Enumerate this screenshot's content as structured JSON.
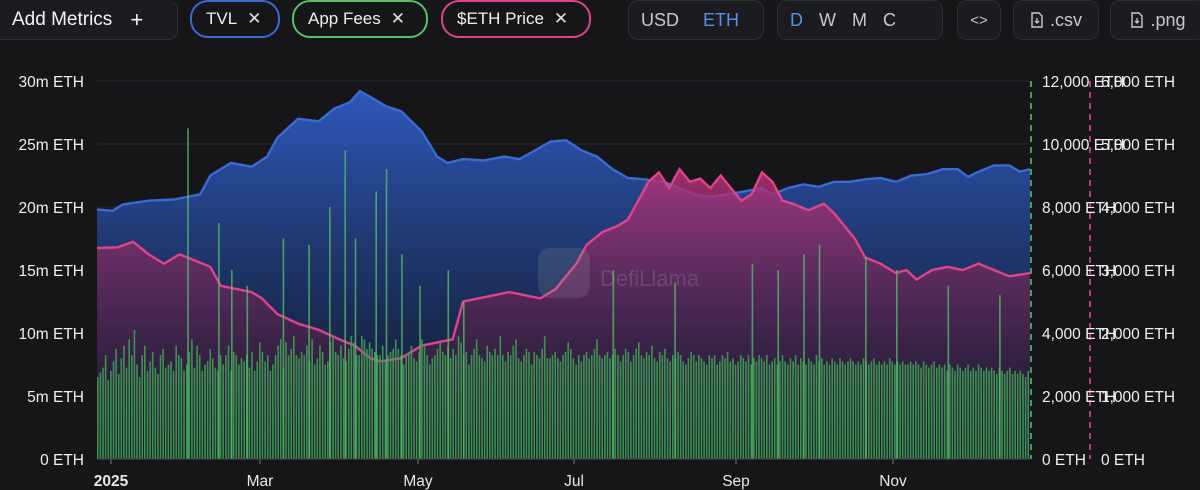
{
  "toolbar": {
    "add_metrics": "Add Metrics",
    "add_icon": "+",
    "metrics": [
      {
        "label": "TVL",
        "color": "#3a6ad4"
      },
      {
        "label": "App Fees",
        "color": "#55c06a"
      },
      {
        "label": "$ETH Price",
        "color": "#e0428c"
      }
    ],
    "currency": [
      "USD",
      "ETH"
    ],
    "currency_active": "ETH",
    "periods": [
      "D",
      "W",
      "M",
      "C"
    ],
    "period_active": "D",
    "embed_icon": "<>",
    "csv_label": ".csv",
    "png_label": ".png"
  },
  "watermark": "DefiLlama",
  "chart_data": {
    "type": "area",
    "x_labels": [
      "2025",
      "Mar",
      "May",
      "Jul",
      "Sep",
      "Nov"
    ],
    "y_left": {
      "ticks": [
        "0 ETH",
        "5m ETH",
        "10m ETH",
        "15m ETH",
        "20m ETH",
        "25m ETH",
        "30m ETH"
      ],
      "range": [
        0,
        30000000
      ]
    },
    "y_right_1": {
      "ticks": [
        "0 ETH",
        "2,000 ETH",
        "4,000 ETH",
        "6,000 ETH",
        "8,000 ETH",
        "10,000 ETH",
        "12,000 ETH"
      ],
      "range": [
        0,
        12000
      ]
    },
    "y_right_2": {
      "ticks": [
        "0 ETH",
        "1,000 ETH",
        "2,000 ETH",
        "3,000 ETH",
        "4,000 ETH",
        "5,000 ETH",
        "6,000 ETH"
      ],
      "range": [
        0,
        6000
      ]
    },
    "series": [
      {
        "name": "TVL",
        "axis": "left",
        "color": "#3a6ad4",
        "points": [
          [
            0,
            19.8
          ],
          [
            6,
            19.7
          ],
          [
            10,
            20.2
          ],
          [
            20,
            20.5
          ],
          [
            30,
            20.6
          ],
          [
            40,
            21.0
          ],
          [
            44,
            22.5
          ],
          [
            52,
            23.5
          ],
          [
            60,
            23.2
          ],
          [
            66,
            24.0
          ],
          [
            70,
            25.5
          ],
          [
            78,
            27.0
          ],
          [
            86,
            26.8
          ],
          [
            92,
            27.8
          ],
          [
            98,
            28.3
          ],
          [
            102,
            29.2
          ],
          [
            108,
            28.5
          ],
          [
            112,
            28.0
          ],
          [
            118,
            27.6
          ],
          [
            126,
            26.0
          ],
          [
            132,
            24.0
          ],
          [
            136,
            23.5
          ],
          [
            142,
            23.8
          ],
          [
            150,
            23.7
          ],
          [
            158,
            24.0
          ],
          [
            164,
            23.8
          ],
          [
            170,
            24.5
          ],
          [
            176,
            25.2
          ],
          [
            182,
            25.3
          ],
          [
            188,
            24.5
          ],
          [
            194,
            24.0
          ],
          [
            200,
            23.0
          ],
          [
            206,
            22.3
          ],
          [
            212,
            22.2
          ],
          [
            220,
            22.0
          ],
          [
            226,
            21.5
          ],
          [
            232,
            21.0
          ],
          [
            238,
            20.8
          ],
          [
            244,
            21.0
          ],
          [
            250,
            21.2
          ],
          [
            258,
            21.5
          ],
          [
            262,
            21.0
          ],
          [
            268,
            21.5
          ],
          [
            274,
            21.8
          ],
          [
            280,
            21.6
          ],
          [
            286,
            22.0
          ],
          [
            292,
            22.0
          ],
          [
            298,
            22.2
          ],
          [
            304,
            22.3
          ],
          [
            310,
            22.0
          ],
          [
            316,
            22.5
          ],
          [
            322,
            22.6
          ],
          [
            328,
            23.0
          ],
          [
            334,
            23.0
          ],
          [
            338,
            22.4
          ],
          [
            342,
            22.8
          ],
          [
            348,
            23.3
          ],
          [
            354,
            23.3
          ],
          [
            358,
            22.8
          ],
          [
            362,
            23.0
          ]
        ]
      },
      {
        "name": "$ETH Price",
        "axis": "right_2",
        "color": "#e0428c",
        "points": [
          [
            0,
            3350
          ],
          [
            8,
            3360
          ],
          [
            14,
            3450
          ],
          [
            20,
            3250
          ],
          [
            26,
            3100
          ],
          [
            32,
            3250
          ],
          [
            38,
            3150
          ],
          [
            44,
            3050
          ],
          [
            48,
            2750
          ],
          [
            54,
            2700
          ],
          [
            60,
            2650
          ],
          [
            64,
            2550
          ],
          [
            70,
            2300
          ],
          [
            78,
            2150
          ],
          [
            86,
            2050
          ],
          [
            94,
            1900
          ],
          [
            100,
            1800
          ],
          [
            106,
            1600
          ],
          [
            110,
            1550
          ],
          [
            118,
            1600
          ],
          [
            126,
            1800
          ],
          [
            132,
            1850
          ],
          [
            138,
            1900
          ],
          [
            142,
            2500
          ],
          [
            148,
            2550
          ],
          [
            154,
            2600
          ],
          [
            160,
            2650
          ],
          [
            166,
            2600
          ],
          [
            172,
            2550
          ],
          [
            178,
            2700
          ],
          [
            182,
            2900
          ],
          [
            186,
            3100
          ],
          [
            190,
            3400
          ],
          [
            196,
            3600
          ],
          [
            202,
            3700
          ],
          [
            206,
            3800
          ],
          [
            210,
            4100
          ],
          [
            214,
            4400
          ],
          [
            218,
            4550
          ],
          [
            222,
            4300
          ],
          [
            226,
            4600
          ],
          [
            230,
            4400
          ],
          [
            234,
            4450
          ],
          [
            238,
            4300
          ],
          [
            242,
            4500
          ],
          [
            246,
            4300
          ],
          [
            250,
            4100
          ],
          [
            254,
            4200
          ],
          [
            258,
            4550
          ],
          [
            262,
            4400
          ],
          [
            266,
            4100
          ],
          [
            270,
            4050
          ],
          [
            276,
            3950
          ],
          [
            282,
            4050
          ],
          [
            286,
            3900
          ],
          [
            290,
            3700
          ],
          [
            294,
            3500
          ],
          [
            298,
            3200
          ],
          [
            304,
            3100
          ],
          [
            310,
            2950
          ],
          [
            314,
            3000
          ],
          [
            318,
            2850
          ],
          [
            324,
            3000
          ],
          [
            330,
            3050
          ],
          [
            336,
            3000
          ],
          [
            342,
            3100
          ],
          [
            348,
            3000
          ],
          [
            354,
            2900
          ],
          [
            362,
            2950
          ]
        ]
      },
      {
        "name": "App Fees",
        "axis": "right_1",
        "color": "#55c06a",
        "type": "bar",
        "bars": [
          2600,
          2750,
          2900,
          3300,
          2500,
          2800,
          3100,
          3500,
          2700,
          3200,
          3600,
          2900,
          3800,
          3300,
          4100,
          3000,
          2600,
          3300,
          3600,
          2800,
          3100,
          3400,
          2900,
          2700,
          3300,
          3500,
          2900,
          3000,
          3100,
          2800,
          3600,
          3300,
          3200,
          2800,
          3000,
          3400,
          3800,
          2900,
          3600,
          3300,
          2800,
          3000,
          3100,
          3500,
          3200,
          2900,
          2800,
          3300,
          3000,
          3300,
          3600,
          2800,
          3400,
          3300,
          3000,
          3200,
          3100,
          3300,
          2900,
          3400,
          2800,
          3100,
          3700,
          3400,
          3100,
          3300,
          2800,
          3000,
          3300,
          3600,
          3800,
          2900,
          3700,
          3300,
          3500,
          3900,
          3300,
          3200,
          3400,
          3300,
          3600,
          3100,
          3800,
          3000,
          3200,
          3600,
          3400,
          3000,
          3100,
          3700,
          3900,
          3400,
          3300,
          3600,
          3200,
          3100,
          3500,
          3900,
          3700,
          3300,
          3300,
          3900,
          3800,
          3500,
          3700,
          3500,
          3400,
          3300,
          3300,
          3600,
          3100,
          3300,
          3400,
          3500,
          3800,
          3500,
          3300,
          3000,
          3300,
          3400,
          3600,
          3200,
          3100,
          3400,
          3800,
          3600,
          3300,
          3000,
          3200,
          3300,
          3500,
          3700,
          3400,
          3300,
          3600,
          3200,
          3500,
          3300,
          3900,
          3700,
          3300,
          3400,
          3000,
          3300,
          3500,
          3800,
          3300,
          3200,
          3100,
          3600,
          3400,
          3300,
          3500,
          3300,
          3900,
          3300,
          3100,
          3400,
          3300,
          3600,
          3800,
          3200,
          3100,
          3300,
          3500,
          3400,
          3000,
          3400,
          3300,
          3200,
          3500,
          3900,
          3200,
          3200,
          3300,
          3400,
          3200,
          3100,
          3300,
          3400,
          3700,
          3500,
          3200,
          3000,
          3300,
          3100,
          3300,
          3400,
          3200,
          3300,
          3500,
          3800,
          3300,
          3200,
          3300,
          3400,
          3200,
          3300,
          3500,
          3300,
          3100,
          3300,
          3500,
          3400,
          3100,
          3300,
          3500,
          3700,
          3300,
          3200,
          3400,
          3300,
          3600,
          3200,
          3100,
          3400,
          3300,
          3500,
          3200,
          3100,
          3300,
          3200,
          3400,
          3300,
          3100,
          3000,
          3200,
          3400,
          3300,
          3100,
          3300,
          3200,
          3100,
          3000,
          3300,
          3200,
          3300,
          3000,
          3100,
          3300,
          3200,
          3400,
          3100,
          3200,
          3000,
          3100,
          3300,
          3200,
          3100,
          3300,
          3000,
          3200,
          3100,
          3300,
          3200,
          3100,
          3300,
          3000,
          3100,
          3200,
          3000,
          3100,
          3300,
          3100,
          3000,
          3200,
          3100,
          3300,
          3000,
          3200,
          3100,
          3000,
          3200,
          3100,
          3000,
          3300,
          3100,
          3200,
          3000,
          3100,
          3000,
          3200,
          3100,
          3000,
          3200,
          3100,
          3000,
          3100,
          3200,
          3100,
          3000,
          3100,
          3000,
          3200,
          3100,
          3000,
          3100,
          3200,
          3000,
          3100,
          3000,
          3100,
          3000,
          3200,
          3100,
          3000,
          3100,
          3000,
          3100,
          3000,
          3000,
          3100,
          3000,
          3100,
          3000,
          2900,
          3100,
          3000,
          2900,
          3000,
          3100,
          2900,
          3000,
          2900,
          3000,
          2800,
          3000,
          2900,
          2800,
          3000,
          2900,
          2800,
          2900,
          3000,
          2800,
          2900,
          2800,
          3000,
          2900,
          2800,
          2900,
          2800,
          2900,
          2800,
          2700,
          2900,
          2800,
          2700,
          2800,
          2900,
          2700,
          2800,
          2700,
          2800,
          2700,
          2600,
          2800
        ],
        "spikes": [
          [
            35,
            10500
          ],
          [
            47,
            7500
          ],
          [
            52,
            6000
          ],
          [
            58,
            5500
          ],
          [
            72,
            7000
          ],
          [
            82,
            6800
          ],
          [
            90,
            8000
          ],
          [
            96,
            9800
          ],
          [
            100,
            7000
          ],
          [
            108,
            8500
          ],
          [
            112,
            9200
          ],
          [
            118,
            6500
          ],
          [
            125,
            5500
          ],
          [
            136,
            6000
          ],
          [
            142,
            5000
          ],
          [
            200,
            6000
          ],
          [
            224,
            5600
          ],
          [
            254,
            6200
          ],
          [
            264,
            6000
          ],
          [
            274,
            6500
          ],
          [
            280,
            6800
          ],
          [
            298,
            6400
          ],
          [
            310,
            6000
          ],
          [
            330,
            5500
          ],
          [
            350,
            5200
          ]
        ]
      }
    ],
    "grid": true,
    "legend": "top-left"
  }
}
